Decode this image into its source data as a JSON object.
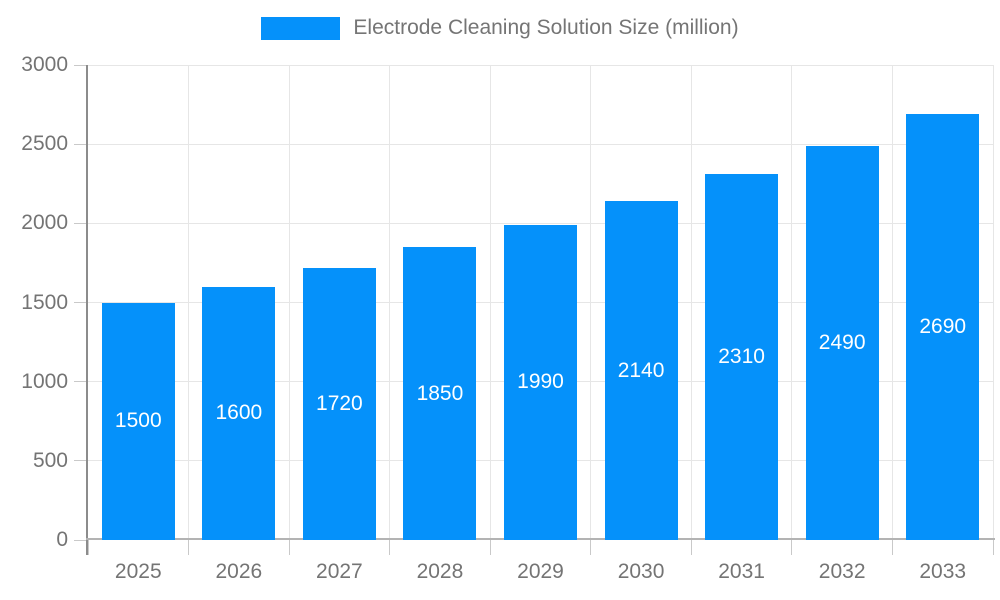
{
  "legend": {
    "label": "Electrode Cleaning Solution Size (million)"
  },
  "chart_data": {
    "type": "bar",
    "title": "Electrode Cleaning Solution Size (million)",
    "series_name": "Electrode Cleaning Solution Size (million)",
    "categories": [
      "2025",
      "2026",
      "2027",
      "2028",
      "2029",
      "2030",
      "2031",
      "2032",
      "2033"
    ],
    "values": [
      1500,
      1600,
      1720,
      1850,
      1990,
      2140,
      2310,
      2490,
      2690
    ],
    "bar_labels": [
      "1500",
      "1600",
      "1720",
      "1850",
      "1990",
      "2140",
      "2310",
      "2490",
      "2690"
    ],
    "xlabel": "",
    "ylabel": "",
    "ylim": [
      0,
      3000
    ],
    "yticks": [
      0,
      500,
      1000,
      1500,
      2000,
      2500,
      3000
    ],
    "grid": true,
    "legend_position": "top"
  },
  "colors": {
    "bar": "#0591fa",
    "bar_label": "#ffffff",
    "grid": "#e6e6e6",
    "tick": "#c9c9c9",
    "axis_y": "#8c8c8c",
    "axis_x": "#b3b3b3",
    "text": "#747474"
  }
}
